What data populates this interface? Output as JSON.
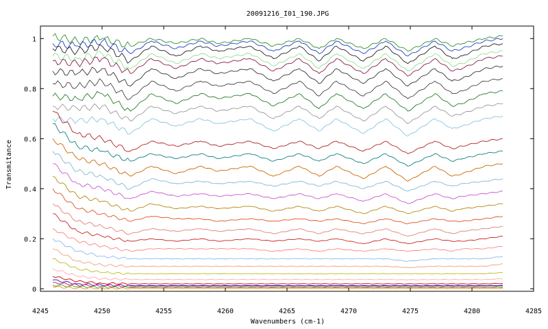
{
  "chart_data": {
    "type": "line",
    "title": "20091216_I01_190.JPG",
    "xlabel": "Wavenumbers (cm-1)",
    "ylabel": "Transmitance",
    "xlim": [
      4245,
      4285
    ],
    "ylim": [
      -0.01,
      1.05
    ],
    "x_ticks": [
      4245,
      4250,
      4255,
      4260,
      4265,
      4270,
      4275,
      4280,
      4285
    ],
    "x_tick_labels": [
      "4245",
      "4250",
      "4255",
      "4260",
      "4265",
      "4270",
      "4275",
      "4280",
      "4285"
    ],
    "y_ticks": [
      0,
      0.2,
      0.4,
      0.6,
      0.8,
      1
    ],
    "y_tick_labels": [
      "0",
      "0.2",
      "0.4",
      "0.6",
      "0.8",
      "1"
    ],
    "grid": false,
    "legend": "none",
    "x": [
      4246,
      4248,
      4250,
      4252.3,
      4254,
      4256,
      4258,
      4259.4,
      4262,
      4263.9,
      4266,
      4267.6,
      4269,
      4271.2,
      4273,
      4274.8,
      4277,
      4278.4,
      4279.2,
      4281,
      4282.5
    ],
    "series": [
      {
        "color": "#2f8f2f",
        "values": [
          1.01,
          0.99,
          1.0,
          0.97,
          1.0,
          0.98,
          1.0,
          0.98,
          1.0,
          0.97,
          1.0,
          0.96,
          1.0,
          0.96,
          1.0,
          0.95,
          1.0,
          0.97,
          0.98,
          1.0,
          1.01
        ]
      },
      {
        "color": "#1f3fbf",
        "values": [
          0.98,
          0.97,
          0.99,
          0.94,
          0.99,
          0.96,
          0.99,
          0.97,
          0.99,
          0.95,
          0.99,
          0.94,
          0.99,
          0.94,
          0.99,
          0.93,
          0.99,
          0.95,
          0.96,
          0.99,
          1.0
        ]
      },
      {
        "color": "#222222",
        "values": [
          0.96,
          0.95,
          0.97,
          0.91,
          0.97,
          0.93,
          0.97,
          0.95,
          0.97,
          0.92,
          0.97,
          0.91,
          0.97,
          0.91,
          0.97,
          0.9,
          0.97,
          0.92,
          0.93,
          0.97,
          0.98
        ]
      },
      {
        "color": "#90e090",
        "values": [
          0.93,
          0.92,
          0.94,
          0.88,
          0.94,
          0.9,
          0.94,
          0.92,
          0.94,
          0.89,
          0.94,
          0.88,
          0.94,
          0.88,
          0.94,
          0.87,
          0.94,
          0.89,
          0.9,
          0.94,
          0.95
        ]
      },
      {
        "color": "#8b1a4a",
        "values": [
          0.91,
          0.9,
          0.92,
          0.86,
          0.92,
          0.88,
          0.92,
          0.9,
          0.92,
          0.87,
          0.92,
          0.86,
          0.92,
          0.86,
          0.92,
          0.85,
          0.92,
          0.87,
          0.88,
          0.92,
          0.93
        ]
      },
      {
        "color": "#333333",
        "values": [
          0.87,
          0.86,
          0.88,
          0.81,
          0.88,
          0.84,
          0.88,
          0.86,
          0.88,
          0.83,
          0.88,
          0.82,
          0.88,
          0.82,
          0.88,
          0.81,
          0.88,
          0.83,
          0.84,
          0.88,
          0.89
        ]
      },
      {
        "color": "#444444",
        "values": [
          0.82,
          0.81,
          0.83,
          0.76,
          0.83,
          0.79,
          0.83,
          0.81,
          0.83,
          0.78,
          0.83,
          0.77,
          0.83,
          0.77,
          0.83,
          0.76,
          0.83,
          0.78,
          0.79,
          0.83,
          0.84
        ]
      },
      {
        "color": "#2a7a2a",
        "values": [
          0.77,
          0.76,
          0.78,
          0.71,
          0.78,
          0.74,
          0.78,
          0.76,
          0.78,
          0.73,
          0.78,
          0.72,
          0.78,
          0.72,
          0.78,
          0.71,
          0.78,
          0.73,
          0.74,
          0.78,
          0.79
        ]
      },
      {
        "color": "#999999",
        "values": [
          0.73,
          0.72,
          0.73,
          0.67,
          0.73,
          0.7,
          0.73,
          0.71,
          0.73,
          0.68,
          0.73,
          0.68,
          0.73,
          0.67,
          0.73,
          0.66,
          0.73,
          0.69,
          0.7,
          0.73,
          0.74
        ]
      },
      {
        "color": "#88c4e0",
        "values": [
          0.68,
          0.67,
          0.68,
          0.62,
          0.68,
          0.65,
          0.68,
          0.66,
          0.68,
          0.63,
          0.68,
          0.63,
          0.68,
          0.62,
          0.68,
          0.61,
          0.68,
          0.64,
          0.65,
          0.68,
          0.69
        ]
      },
      {
        "color": "#b22222",
        "values": [
          0.71,
          0.62,
          0.6,
          0.55,
          0.59,
          0.57,
          0.59,
          0.57,
          0.59,
          0.56,
          0.59,
          0.56,
          0.59,
          0.55,
          0.59,
          0.54,
          0.59,
          0.56,
          0.57,
          0.59,
          0.6
        ]
      },
      {
        "color": "#0f7f7f",
        "values": [
          0.66,
          0.57,
          0.55,
          0.51,
          0.54,
          0.52,
          0.54,
          0.52,
          0.54,
          0.51,
          0.54,
          0.51,
          0.54,
          0.5,
          0.54,
          0.49,
          0.54,
          0.51,
          0.52,
          0.54,
          0.55
        ]
      },
      {
        "color": "#cc6600",
        "values": [
          0.6,
          0.52,
          0.5,
          0.45,
          0.49,
          0.46,
          0.49,
          0.47,
          0.49,
          0.45,
          0.49,
          0.45,
          0.49,
          0.44,
          0.49,
          0.43,
          0.49,
          0.45,
          0.46,
          0.49,
          0.5
        ]
      },
      {
        "color": "#7fb8d8",
        "values": [
          0.55,
          0.47,
          0.45,
          0.4,
          0.44,
          0.42,
          0.43,
          0.42,
          0.43,
          0.41,
          0.43,
          0.41,
          0.43,
          0.4,
          0.43,
          0.39,
          0.43,
          0.41,
          0.42,
          0.43,
          0.44
        ]
      },
      {
        "color": "#cc55cc",
        "values": [
          0.5,
          0.42,
          0.4,
          0.36,
          0.39,
          0.37,
          0.38,
          0.37,
          0.38,
          0.36,
          0.38,
          0.36,
          0.38,
          0.35,
          0.38,
          0.34,
          0.38,
          0.36,
          0.37,
          0.38,
          0.39
        ]
      },
      {
        "color": "#b8860b",
        "values": [
          0.45,
          0.37,
          0.35,
          0.31,
          0.34,
          0.32,
          0.33,
          0.32,
          0.33,
          0.31,
          0.33,
          0.31,
          0.33,
          0.3,
          0.33,
          0.3,
          0.33,
          0.31,
          0.32,
          0.33,
          0.34
        ]
      },
      {
        "color": "#e05020",
        "values": [
          0.4,
          0.32,
          0.3,
          0.27,
          0.29,
          0.28,
          0.28,
          0.27,
          0.28,
          0.27,
          0.28,
          0.27,
          0.28,
          0.26,
          0.28,
          0.26,
          0.28,
          0.27,
          0.27,
          0.28,
          0.29
        ]
      },
      {
        "color": "#e08070",
        "values": [
          0.34,
          0.27,
          0.25,
          0.22,
          0.24,
          0.23,
          0.24,
          0.23,
          0.24,
          0.22,
          0.24,
          0.22,
          0.24,
          0.22,
          0.24,
          0.21,
          0.24,
          0.22,
          0.23,
          0.24,
          0.25
        ]
      },
      {
        "color": "#cc2222",
        "values": [
          0.3,
          0.23,
          0.21,
          0.19,
          0.2,
          0.19,
          0.2,
          0.19,
          0.2,
          0.19,
          0.2,
          0.19,
          0.2,
          0.18,
          0.2,
          0.18,
          0.2,
          0.19,
          0.19,
          0.2,
          0.21
        ]
      },
      {
        "color": "#ff8080",
        "values": [
          0.24,
          0.19,
          0.17,
          0.15,
          0.16,
          0.16,
          0.16,
          0.16,
          0.16,
          0.15,
          0.16,
          0.15,
          0.16,
          0.15,
          0.16,
          0.15,
          0.16,
          0.15,
          0.16,
          0.16,
          0.17
        ]
      },
      {
        "color": "#88bbee",
        "values": [
          0.2,
          0.15,
          0.13,
          0.12,
          0.12,
          0.12,
          0.12,
          0.12,
          0.12,
          0.12,
          0.12,
          0.12,
          0.12,
          0.12,
          0.12,
          0.11,
          0.12,
          0.12,
          0.12,
          0.12,
          0.13
        ]
      },
      {
        "color": "#f0a080",
        "values": [
          0.16,
          0.11,
          0.095,
          0.09,
          0.09,
          0.09,
          0.09,
          0.09,
          0.09,
          0.09,
          0.09,
          0.09,
          0.09,
          0.09,
          0.09,
          0.085,
          0.09,
          0.09,
          0.09,
          0.09,
          0.1
        ]
      },
      {
        "color": "#bbbb22",
        "values": [
          0.12,
          0.08,
          0.065,
          0.06,
          0.06,
          0.06,
          0.06,
          0.06,
          0.06,
          0.06,
          0.06,
          0.06,
          0.06,
          0.06,
          0.06,
          0.06,
          0.06,
          0.06,
          0.06,
          0.06,
          0.065
        ]
      },
      {
        "color": "#ffaaaa",
        "values": [
          0.08,
          0.05,
          0.04,
          0.037,
          0.037,
          0.037,
          0.037,
          0.037,
          0.037,
          0.037,
          0.037,
          0.037,
          0.037,
          0.037,
          0.037,
          0.036,
          0.037,
          0.037,
          0.037,
          0.037,
          0.04
        ]
      },
      {
        "color": "#cc0000",
        "values": [
          0.05,
          0.03,
          0.022,
          0.02,
          0.02,
          0.02,
          0.02,
          0.02,
          0.02,
          0.02,
          0.02,
          0.02,
          0.02,
          0.02,
          0.02,
          0.02,
          0.02,
          0.02,
          0.02,
          0.02,
          0.022
        ]
      },
      {
        "color": "#2222aa",
        "values": [
          0.035,
          0.02,
          0.015,
          0.013,
          0.013,
          0.013,
          0.013,
          0.013,
          0.013,
          0.013,
          0.013,
          0.013,
          0.013,
          0.013,
          0.013,
          0.013,
          0.013,
          0.013,
          0.013,
          0.013,
          0.014
        ]
      },
      {
        "color": "#dd0088",
        "values": [
          0.025,
          0.015,
          0.011,
          0.01,
          0.01,
          0.01,
          0.01,
          0.01,
          0.01,
          0.01,
          0.01,
          0.01,
          0.01,
          0.01,
          0.01,
          0.01,
          0.01,
          0.01,
          0.01,
          0.01,
          0.011
        ]
      },
      {
        "color": "#22aa22",
        "values": [
          0.015,
          0.008,
          0.006,
          0.005,
          0.005,
          0.005,
          0.005,
          0.005,
          0.005,
          0.005,
          0.005,
          0.005,
          0.005,
          0.005,
          0.005,
          0.005,
          0.005,
          0.005,
          0.005,
          0.005,
          0.006
        ]
      },
      {
        "color": "#ff8800",
        "values": [
          0.008,
          0.003,
          0.002,
          0.002,
          0.002,
          0.002,
          0.002,
          0.002,
          0.002,
          0.002,
          0.002,
          0.002,
          0.002,
          0.002,
          0.002,
          0.002,
          0.002,
          0.002,
          0.002,
          0.002,
          0.002
        ]
      }
    ]
  }
}
